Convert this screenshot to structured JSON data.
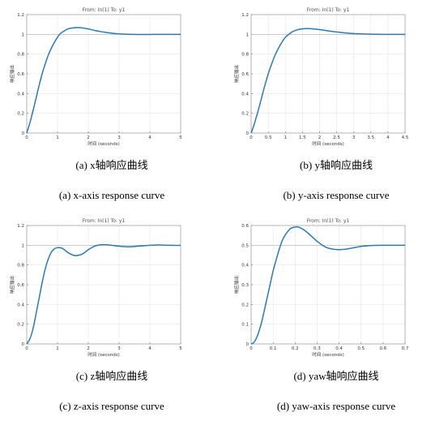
{
  "chart_data": [
    {
      "type": "line",
      "title": "From: In(1)  To: y1",
      "xlabel": "时间 (seconds)",
      "ylabel": "响应输出",
      "xlim": [
        0,
        5
      ],
      "ylim": [
        0,
        1.2
      ],
      "xticks": [
        "0",
        "1",
        "2",
        "3",
        "4",
        "5"
      ],
      "yticks": [
        "0",
        "0.2",
        "0.4",
        "0.6",
        "0.8",
        "1",
        "1.2"
      ],
      "reference_line": 1,
      "grid": true,
      "line_color": "#2a7ab8",
      "caption_cn": "(a) x轴响应曲线",
      "caption_en": "(a) x-axis response curve",
      "series": [
        {
          "x": [
            0,
            0.1,
            0.2,
            0.3,
            0.4,
            0.5,
            0.6,
            0.7,
            0.8,
            0.9,
            1.0,
            1.1,
            1.2,
            1.3,
            1.4,
            1.5,
            1.6,
            1.7,
            1.8,
            1.9,
            2.0,
            2.2,
            2.4,
            2.6,
            2.8,
            3.0,
            3.2,
            3.4,
            3.6,
            3.8,
            4.0,
            4.2,
            4.4,
            4.6,
            4.8,
            5.0
          ],
          "values": [
            0,
            0.1,
            0.22,
            0.35,
            0.48,
            0.6,
            0.7,
            0.79,
            0.86,
            0.92,
            0.97,
            1.01,
            1.03,
            1.05,
            1.06,
            1.065,
            1.068,
            1.068,
            1.065,
            1.06,
            1.055,
            1.04,
            1.028,
            1.018,
            1.01,
            1.005,
            1.002,
            1.0,
            0.999,
            0.999,
            0.999,
            1.0,
            1.0,
            1.0,
            1.0,
            1.0
          ]
        }
      ]
    },
    {
      "type": "line",
      "title": "From: In(1)  To: y1",
      "xlabel": "时间 (seconds)",
      "ylabel": "响应输出",
      "xlim": [
        0,
        4.5
      ],
      "ylim": [
        0,
        1.2
      ],
      "xticks": [
        "0",
        "0.5",
        "1",
        "1.5",
        "2",
        "2.5",
        "3",
        "3.5",
        "4",
        "4.5"
      ],
      "yticks": [
        "0",
        "0.2",
        "0.4",
        "0.6",
        "0.8",
        "1",
        "1.2"
      ],
      "reference_line": 1,
      "grid": true,
      "line_color": "#2a7ab8",
      "caption_cn": "(b) y轴响应曲线",
      "caption_en": "(b) y-axis response curve",
      "series": [
        {
          "x": [
            0,
            0.1,
            0.2,
            0.3,
            0.4,
            0.5,
            0.6,
            0.7,
            0.8,
            0.9,
            1.0,
            1.1,
            1.2,
            1.3,
            1.4,
            1.5,
            1.6,
            1.7,
            1.8,
            1.9,
            2.0,
            2.2,
            2.4,
            2.6,
            2.8,
            3.0,
            3.2,
            3.4,
            3.6,
            3.8,
            4.0,
            4.2,
            4.5
          ],
          "values": [
            0,
            0.1,
            0.22,
            0.35,
            0.48,
            0.6,
            0.7,
            0.79,
            0.86,
            0.92,
            0.97,
            1.0,
            1.025,
            1.04,
            1.05,
            1.055,
            1.058,
            1.058,
            1.055,
            1.052,
            1.048,
            1.038,
            1.028,
            1.02,
            1.013,
            1.008,
            1.005,
            1.003,
            1.001,
            1.0,
            1.0,
            1.0,
            1.0
          ]
        }
      ]
    },
    {
      "type": "line",
      "title": "From: In(1)  To: y1",
      "xlabel": "时间 (seconds)",
      "ylabel": "响应输出",
      "xlim": [
        0,
        5
      ],
      "ylim": [
        0,
        1.2
      ],
      "xticks": [
        "0",
        "1",
        "2",
        "3",
        "4",
        "5"
      ],
      "yticks": [
        "0",
        "0.2",
        "0.4",
        "0.6",
        "0.8",
        "1",
        "1.2"
      ],
      "reference_line": 1,
      "grid": true,
      "line_color": "#2a7ab8",
      "caption_cn": "(c) z轴响应曲线",
      "caption_en": "(c) z-axis response curve",
      "series": [
        {
          "x": [
            0,
            0.1,
            0.2,
            0.3,
            0.4,
            0.5,
            0.6,
            0.7,
            0.8,
            0.9,
            1.0,
            1.1,
            1.2,
            1.3,
            1.4,
            1.5,
            1.6,
            1.7,
            1.8,
            1.9,
            2.0,
            2.2,
            2.4,
            2.6,
            2.8,
            3.0,
            3.2,
            3.4,
            3.6,
            3.8,
            4.0,
            4.2,
            4.4,
            4.6,
            4.8,
            5.0
          ],
          "values": [
            0,
            0.05,
            0.15,
            0.3,
            0.46,
            0.62,
            0.76,
            0.86,
            0.93,
            0.965,
            0.975,
            0.975,
            0.96,
            0.935,
            0.915,
            0.9,
            0.895,
            0.9,
            0.91,
            0.93,
            0.955,
            0.99,
            1.005,
            1.005,
            0.998,
            0.99,
            0.985,
            0.985,
            0.99,
            0.995,
            1.0,
            1.002,
            1.002,
            1.0,
            0.999,
            0.999
          ]
        }
      ]
    },
    {
      "type": "line",
      "title": "From: In(1)  To: y1",
      "xlabel": "时间 (seconds)",
      "ylabel": "响应输出",
      "xlim": [
        0,
        0.7
      ],
      "ylim": [
        0,
        0.6
      ],
      "xticks": [
        "0",
        "0.1",
        "0.2",
        "0.3",
        "0.4",
        "0.5",
        "0.6",
        "0.7"
      ],
      "yticks": [
        "0",
        "0.1",
        "0.2",
        "0.3",
        "0.4",
        "0.5",
        "0.6"
      ],
      "reference_line": 0.5,
      "grid": true,
      "line_color": "#2a7ab8",
      "caption_cn": "(d) yaw轴响应曲线",
      "caption_en": "(d) yaw-axis response curve",
      "series": [
        {
          "x": [
            0,
            0.01,
            0.02,
            0.03,
            0.04,
            0.05,
            0.06,
            0.07,
            0.08,
            0.09,
            0.1,
            0.12,
            0.14,
            0.16,
            0.18,
            0.2,
            0.21,
            0.22,
            0.24,
            0.26,
            0.28,
            0.3,
            0.32,
            0.34,
            0.36,
            0.38,
            0.4,
            0.42,
            0.44,
            0.46,
            0.48,
            0.5,
            0.55,
            0.6,
            0.65,
            0.7
          ],
          "values": [
            0,
            0.005,
            0.02,
            0.045,
            0.08,
            0.12,
            0.17,
            0.22,
            0.27,
            0.32,
            0.37,
            0.45,
            0.52,
            0.56,
            0.585,
            0.592,
            0.593,
            0.59,
            0.578,
            0.56,
            0.54,
            0.52,
            0.503,
            0.49,
            0.483,
            0.479,
            0.478,
            0.479,
            0.482,
            0.486,
            0.49,
            0.494,
            0.499,
            0.5,
            0.5,
            0.5
          ]
        }
      ]
    }
  ]
}
